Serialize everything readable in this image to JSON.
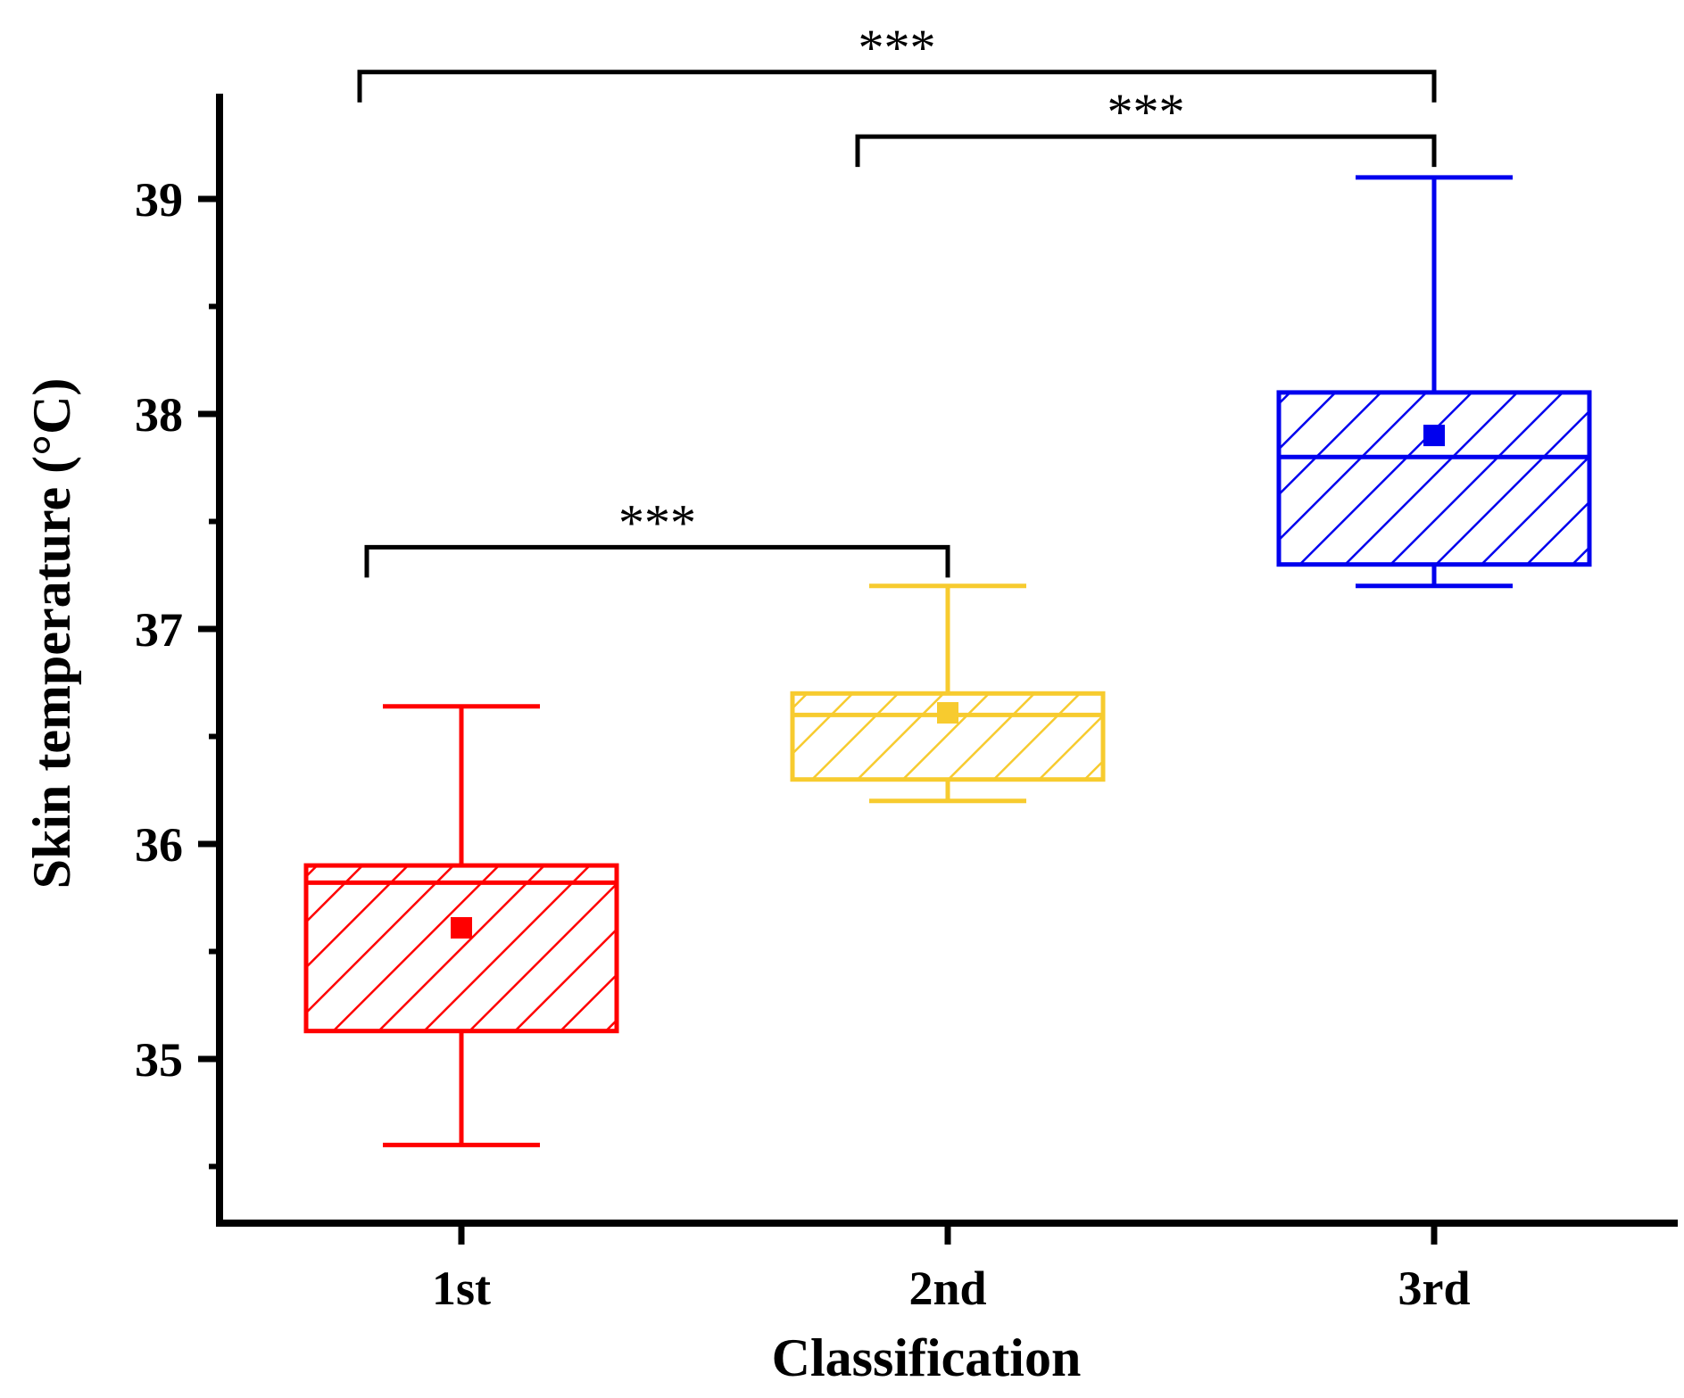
{
  "chart_data": {
    "type": "box",
    "title": "",
    "xlabel": "Classification",
    "ylabel": "Skin temperature (°C)",
    "ylim": [
      34.25,
      39.5
    ],
    "yticks": [
      35,
      36,
      37,
      38,
      39
    ],
    "ytick_labels": [
      "35",
      "36",
      "37",
      "38",
      "39"
    ],
    "categories": [
      "1st",
      "2nd",
      "3rd"
    ],
    "boxes": [
      {
        "name": "1st",
        "color": "#ff0000",
        "whisker_low": 34.6,
        "q1": 35.13,
        "median": 35.82,
        "q3": 35.9,
        "whisker_high": 36.64,
        "mean": 35.61
      },
      {
        "name": "2nd",
        "color": "#f7cb2f",
        "whisker_low": 36.2,
        "q1": 36.3,
        "median": 36.6,
        "q3": 36.7,
        "whisker_high": 37.2,
        "mean": 36.61
      },
      {
        "name": "3rd",
        "color": "#0000ee",
        "whisker_low": 37.2,
        "q1": 37.3,
        "median": 37.8,
        "q3": 38.1,
        "whisker_high": 39.1,
        "mean": 37.9
      }
    ],
    "significance": [
      {
        "from": "1st",
        "to": "2nd",
        "label": "***",
        "level": 37.38
      },
      {
        "from": "2nd",
        "to": "3rd",
        "label": "***",
        "level": 39.29
      },
      {
        "from": "1st",
        "to": "3rd",
        "label": "***",
        "level": 39.59
      }
    ],
    "grid": false,
    "legend": "none"
  }
}
